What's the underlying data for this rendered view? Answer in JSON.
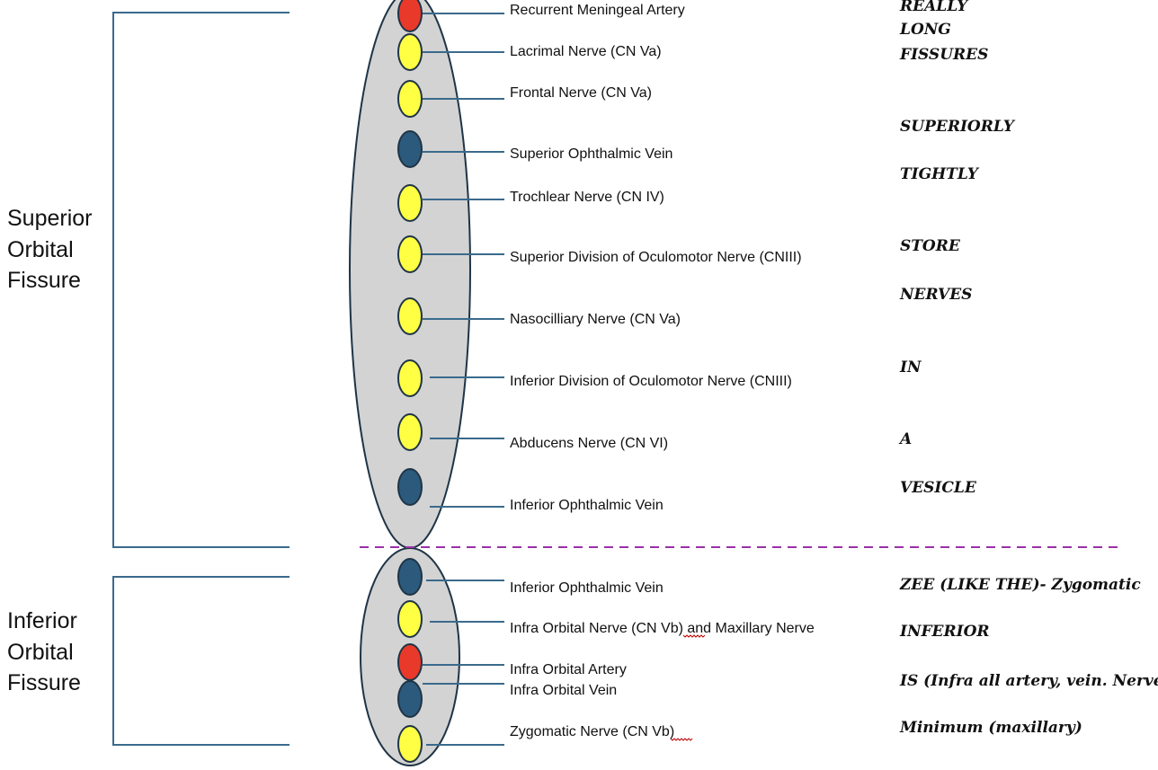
{
  "colors": {
    "artery": "#e8392a",
    "nerve": "#ffff44",
    "vein": "#2c5a7c",
    "fissure_fill": "#d3d3d3",
    "line": "#3a6a8c",
    "divider": "#9b30a8",
    "outline": "#1f3446"
  },
  "superior": {
    "title_lines": [
      "Superior",
      "Orbital",
      "Fissure"
    ],
    "structures": [
      {
        "type": "artery",
        "label": "Recurrent Meningeal Artery"
      },
      {
        "type": "nerve",
        "label": "Lacrimal Nerve (CN Va)"
      },
      {
        "type": "nerve",
        "label": "Frontal Nerve (CN Va)"
      },
      {
        "type": "vein",
        "label": "Superior Ophthalmic Vein"
      },
      {
        "type": "nerve",
        "label": "Trochlear Nerve (CN IV)"
      },
      {
        "type": "nerve",
        "label": "Superior Division of Oculomotor Nerve (CNIII)"
      },
      {
        "type": "nerve",
        "label": "Nasocilliary Nerve (CN Va)"
      },
      {
        "type": "nerve",
        "label": "Inferior Division of Oculomotor Nerve (CNIII)"
      },
      {
        "type": "nerve",
        "label": "Abducens Nerve (CN VI)"
      },
      {
        "type": "vein",
        "label": "Inferior Ophthalmic Vein"
      }
    ],
    "mnemonic": [
      "REALLY",
      "LONG",
      "FISSURES",
      "SUPERIORLY",
      "TIGHTLY",
      "STORE",
      "NERVES",
      "IN",
      "A",
      "VESICLE"
    ]
  },
  "inferior": {
    "title_lines": [
      "Inferior",
      "Orbital",
      "Fissure"
    ],
    "structures": [
      {
        "type": "vein",
        "label": "Inferior Ophthalmic Vein"
      },
      {
        "type": "nerve",
        "label": "Infra Orbital Nerve (CN Vb) and Maxillary Nerve"
      },
      {
        "type": "artery",
        "label": "Infra Orbital Artery"
      },
      {
        "type": "vein",
        "label": "Infra Orbital Vein"
      },
      {
        "type": "nerve",
        "label": "Zygomatic Nerve (CN Vb)"
      }
    ],
    "mnemonic": [
      "ZEE (LIKE THE)- Zygomatic",
      "INFERIOR",
      "IS (Infra all artery, vein. Nerve)",
      "Minimum (maxillary)"
    ]
  }
}
